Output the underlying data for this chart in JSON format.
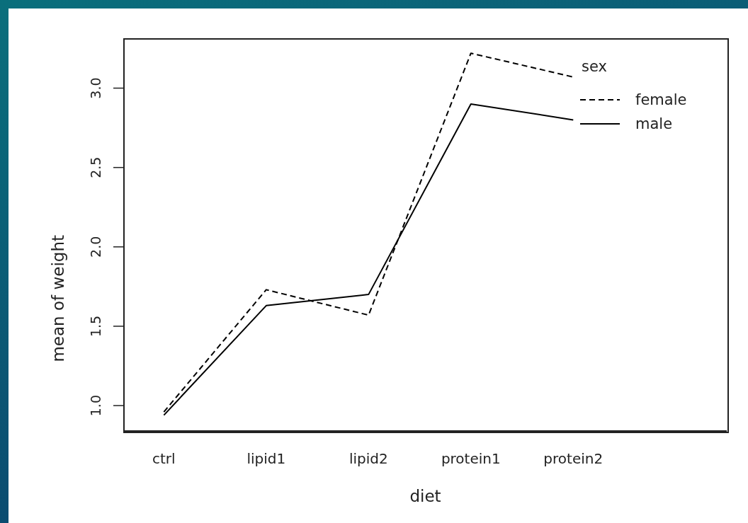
{
  "chart_data": {
    "type": "line",
    "xlabel": "diet",
    "ylabel": "mean of weight",
    "legend_title": "sex",
    "categories": [
      "ctrl",
      "lipid1",
      "lipid2",
      "protein1",
      "protein2"
    ],
    "series": [
      {
        "name": "female",
        "color": "#000000",
        "line_style": "dashed",
        "values": [
          0.96,
          1.73,
          1.57,
          3.22,
          3.07
        ]
      },
      {
        "name": "male",
        "color": "#000000",
        "line_style": "solid",
        "values": [
          0.94,
          1.63,
          1.7,
          2.9,
          2.8
        ]
      }
    ],
    "ylim": [
      0.84,
      3.31
    ],
    "yticks": [
      {
        "value": 1,
        "label": "1.0"
      },
      {
        "value": 1.5,
        "label": "1.5"
      },
      {
        "value": 2,
        "label": "2.0"
      },
      {
        "value": 2.5,
        "label": "2.5"
      },
      {
        "value": 3,
        "label": "3.0"
      }
    ],
    "grid": false,
    "legend": "top right",
    "marker": "none"
  }
}
